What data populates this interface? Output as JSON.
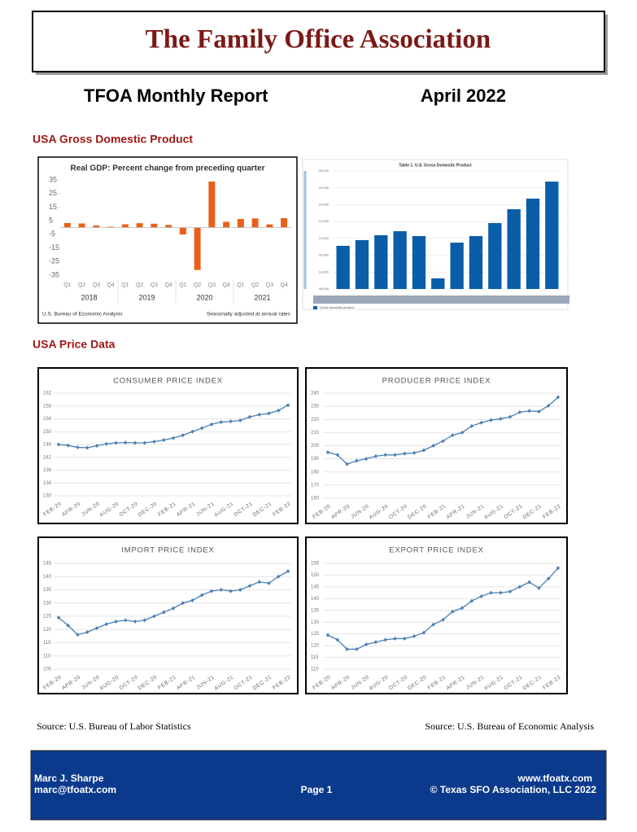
{
  "header": {
    "title": "The Family Office Association"
  },
  "report": {
    "name": "TFOA Monthly Report",
    "date": "April 2022"
  },
  "sections": {
    "gdp": "USA Gross Domestic Product",
    "prices": "USA Price Data"
  },
  "chart_data": [
    {
      "type": "bar",
      "title": "Real GDP: Percent change from preceding quarter",
      "categories": [
        "Q1",
        "Q2",
        "Q3",
        "Q4",
        "Q1",
        "Q2",
        "Q3",
        "Q4",
        "Q1",
        "Q2",
        "Q3",
        "Q4",
        "Q1",
        "Q2",
        "Q3",
        "Q4"
      ],
      "groups": [
        "2018",
        "2019",
        "2020",
        "2021"
      ],
      "values": [
        3.3,
        3.0,
        1.5,
        0.6,
        2.4,
        3.2,
        2.8,
        1.9,
        -5.1,
        -31.2,
        33.8,
        4.2,
        6.3,
        6.7,
        2.3,
        6.9
      ],
      "color": "#e8601c",
      "ylim": [
        -35,
        35
      ],
      "yticks": [
        35,
        25,
        15,
        5,
        -5,
        -15,
        -25,
        -35
      ],
      "grid": false,
      "source": "U.S. Bureau of Economic Analysis",
      "note": "Seasonally adjusted at annual rates"
    },
    {
      "type": "bar",
      "title": "Table 1. U.S. Gross Domestic Product",
      "series_name": "Gross domestic product",
      "values": [
        20560,
        20900,
        21190,
        21430,
        21140,
        18630,
        20750,
        21140,
        21910,
        22730,
        23360,
        24370
      ],
      "color": "#0a5ea8",
      "ylim": [
        18000,
        25000
      ],
      "yticks": [
        {
          "value": 18000,
          "label": "18,000"
        },
        {
          "value": 19000,
          "label": "19,000"
        },
        {
          "value": 20000,
          "label": "20,000"
        },
        {
          "value": 21000,
          "label": "21,000"
        },
        {
          "value": 22000,
          "label": "22,000"
        },
        {
          "value": 23000,
          "label": "23,000"
        },
        {
          "value": 24000,
          "label": "24,000"
        },
        {
          "value": 25000,
          "label": "25,000"
        }
      ],
      "grid": true
    },
    {
      "type": "line",
      "title": "CONSUMER PRICE INDEX",
      "categories": [
        "FEB-20",
        null,
        "APR-20",
        null,
        "JUN-20",
        null,
        "AUG-20",
        null,
        "OCT-20",
        null,
        "DEC-20",
        null,
        "FEB-21",
        null,
        "APR-21",
        null,
        "JUN-21",
        null,
        "AUG-21",
        null,
        "OCT-21",
        null,
        "DEC-21",
        null,
        "FEB-22"
      ],
      "values": [
        146.0,
        145.7,
        145.1,
        145.0,
        145.6,
        146.2,
        146.5,
        146.6,
        146.5,
        146.5,
        146.9,
        147.4,
        148.0,
        148.9,
        150.0,
        151.1,
        152.3,
        153.0,
        153.2,
        153.5,
        154.6,
        155.3,
        155.7,
        156.6,
        158.3
      ],
      "color": "#4a7fb5",
      "ylim": [
        130,
        162
      ],
      "yticks": [
        130,
        134,
        138,
        142,
        146,
        150,
        154,
        158,
        162
      ],
      "grid": true
    },
    {
      "type": "line",
      "title": "PRODUCER PRICE INDEX",
      "categories": [
        "FEB-20",
        null,
        "APR-20",
        null,
        "JUN-20",
        null,
        "AUG-20",
        null,
        "OCT-20",
        null,
        "DEC-20",
        null,
        "FEB-21",
        null,
        "APR-21",
        null,
        "JUN-21",
        null,
        "AUG-21",
        null,
        "OCT-21",
        null,
        "DEC-21",
        null,
        "FEB-22"
      ],
      "values": [
        195,
        193,
        186,
        188.5,
        190,
        192,
        193,
        193,
        194,
        194.5,
        196.5,
        200,
        203.5,
        208,
        210,
        215,
        217.5,
        219.5,
        220.5,
        222,
        225.5,
        226.5,
        226,
        230.5,
        237
      ],
      "color": "#4a7fb5",
      "ylim": [
        160,
        240
      ],
      "yticks": [
        160,
        170,
        180,
        190,
        200,
        210,
        220,
        230,
        240
      ],
      "grid": true
    },
    {
      "type": "line",
      "title": "IMPORT PRICE INDEX",
      "categories": [
        "FEB-20",
        null,
        "APR-20",
        null,
        "JUN-20",
        null,
        "AUG-20",
        null,
        "OCT-20",
        null,
        "DEC-20",
        null,
        "FEB-21",
        null,
        "APR-21",
        null,
        "JUN-21",
        null,
        "AUG-21",
        null,
        "OCT-21",
        null,
        "DEC-21",
        null,
        "FEB-22"
      ],
      "values": [
        124.5,
        121.5,
        118,
        119,
        120.5,
        122,
        123,
        123.5,
        123,
        123.5,
        125,
        126.5,
        128,
        130,
        131,
        133,
        134.5,
        135,
        134.5,
        135,
        136.5,
        138,
        137.5,
        140,
        142
      ],
      "color": "#4a7fb5",
      "ylim": [
        105,
        145
      ],
      "yticks": [
        105,
        110,
        115,
        120,
        125,
        130,
        135,
        140,
        145
      ],
      "grid": true
    },
    {
      "type": "line",
      "title": "EXPORT PRICE INDEX",
      "categories": [
        "FEB-20",
        null,
        "APR-20",
        null,
        "JUN-20",
        null,
        "AUG-20",
        null,
        "OCT-20",
        null,
        "DEC-20",
        null,
        "FEB-21",
        null,
        "APR-21",
        null,
        "JUN-21",
        null,
        "AUG-21",
        null,
        "OCT-21",
        null,
        "DEC-21",
        null,
        "FEB-22"
      ],
      "values": [
        124.5,
        122.5,
        118.5,
        118.5,
        120.5,
        121.5,
        122.5,
        123,
        123,
        124,
        125.5,
        129,
        131,
        134.5,
        136,
        139,
        141,
        142.5,
        142.5,
        143,
        145,
        147,
        144.5,
        148.5,
        153
      ],
      "color": "#4a7fb5",
      "ylim": [
        110,
        155
      ],
      "yticks": [
        110,
        115,
        120,
        125,
        130,
        135,
        140,
        145,
        150,
        155
      ],
      "grid": true
    }
  ],
  "sources": {
    "left": "Source: U.S. Bureau of Labor Statistics",
    "right": "Source: U.S. Bureau of Economic Analysis"
  },
  "footer": {
    "name": "Marc J. Sharpe",
    "email": "marc@tfoatx.com",
    "page": "Page 1",
    "website": "www.tfoatx.com",
    "copyright": "© Texas SFO Association, LLC 2022"
  }
}
